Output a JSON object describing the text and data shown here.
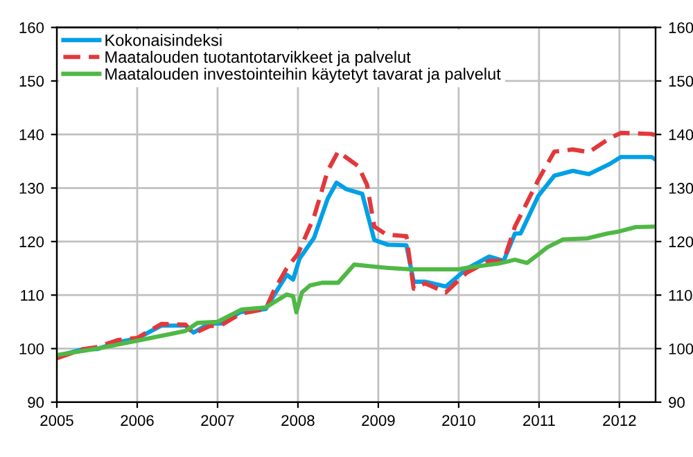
{
  "chart_data": {
    "type": "line",
    "xlim": [
      2005,
      2012.45
    ],
    "xticks": [
      2005,
      2006,
      2007,
      2008,
      2009,
      2010,
      2011,
      2012
    ],
    "ylim": [
      90,
      160
    ],
    "yticks": [
      90,
      100,
      110,
      120,
      130,
      140,
      150,
      160
    ],
    "y2lim": [
      90,
      160
    ],
    "y2ticks": [
      90,
      100,
      110,
      120,
      130,
      140,
      150,
      160
    ],
    "grid": true,
    "legend": "top left",
    "marker": "none",
    "series": [
      {
        "name": "Kokonaisindeksi",
        "color": "#00a0e6",
        "line_style": "solid",
        "x": [
          2005.0,
          2005.33,
          2005.5,
          2005.76,
          2006.0,
          2006.3,
          2006.6,
          2006.7,
          2006.9,
          2007.05,
          2007.28,
          2007.6,
          2007.7,
          2007.86,
          2007.94,
          2008.02,
          2008.2,
          2008.37,
          2008.48,
          2008.6,
          2008.8,
          2008.95,
          2009.12,
          2009.35,
          2009.44,
          2009.58,
          2009.84,
          2010.1,
          2010.38,
          2010.56,
          2010.7,
          2010.77,
          2010.99,
          2011.19,
          2011.42,
          2011.62,
          2011.88,
          2012.02,
          2012.4,
          2012.45
        ],
        "values": [
          98.6,
          99.9,
          99.9,
          101.2,
          101.9,
          104.3,
          104.3,
          103.0,
          104.7,
          104.7,
          106.8,
          107.4,
          109.9,
          113.8,
          112.9,
          116.8,
          120.7,
          128.0,
          131.0,
          129.8,
          128.9,
          120.3,
          119.4,
          119.3,
          112.5,
          112.5,
          111.6,
          114.9,
          117.2,
          116.4,
          121.5,
          121.5,
          128.5,
          132.3,
          133.2,
          132.6,
          134.5,
          135.8,
          135.8,
          135.3
        ]
      },
      {
        "name": "Maatalouden tuotantotarvikkeet ja palvelut",
        "color": "#e2383c",
        "line_style": "dashed",
        "x": [
          2005.0,
          2005.33,
          2005.5,
          2005.76,
          2006.0,
          2006.3,
          2006.6,
          2006.7,
          2006.9,
          2007.05,
          2007.28,
          2007.6,
          2007.7,
          2007.86,
          2008.0,
          2008.2,
          2008.37,
          2008.5,
          2008.75,
          2008.86,
          2008.95,
          2009.1,
          2009.35,
          2009.44,
          2009.58,
          2009.84,
          2010.1,
          2010.38,
          2010.56,
          2010.7,
          2010.99,
          2011.19,
          2011.42,
          2011.62,
          2011.88,
          2012.02,
          2012.4,
          2012.45
        ],
        "values": [
          98.2,
          99.9,
          100.3,
          101.6,
          102.0,
          104.6,
          104.5,
          102.8,
          104.2,
          104.4,
          106.5,
          107.4,
          110.8,
          115.0,
          117.7,
          124.6,
          133.2,
          136.8,
          134.1,
          130.6,
          122.8,
          121.3,
          121.0,
          111.2,
          112.2,
          110.5,
          114.2,
          116.4,
          116.4,
          122.8,
          131.5,
          136.8,
          137.2,
          136.7,
          139.3,
          140.3,
          140.1,
          139.8
        ]
      },
      {
        "name": "Maatalouden investointeihin käytetyt tavarat ja palvelut",
        "color": "#50b846",
        "line_style": "solid",
        "x": [
          2005.0,
          2005.5,
          2006.0,
          2006.6,
          2006.75,
          2007.0,
          2007.3,
          2007.6,
          2007.86,
          2007.94,
          2007.98,
          2008.05,
          2008.15,
          2008.3,
          2008.5,
          2008.7,
          2008.9,
          2009.1,
          2009.4,
          2009.6,
          2010.0,
          2010.1,
          2010.5,
          2010.7,
          2010.85,
          2011.0,
          2011.1,
          2011.3,
          2011.6,
          2011.85,
          2012.0,
          2012.2,
          2012.45
        ],
        "values": [
          98.8,
          100.0,
          101.5,
          103.3,
          104.8,
          105.0,
          107.3,
          107.7,
          110.1,
          109.8,
          106.8,
          110.5,
          111.8,
          112.3,
          112.3,
          115.7,
          115.4,
          115.1,
          114.8,
          114.8,
          114.8,
          115.1,
          115.9,
          116.6,
          116.0,
          117.7,
          118.9,
          120.4,
          120.6,
          121.5,
          121.9,
          122.7,
          122.8
        ]
      }
    ]
  }
}
